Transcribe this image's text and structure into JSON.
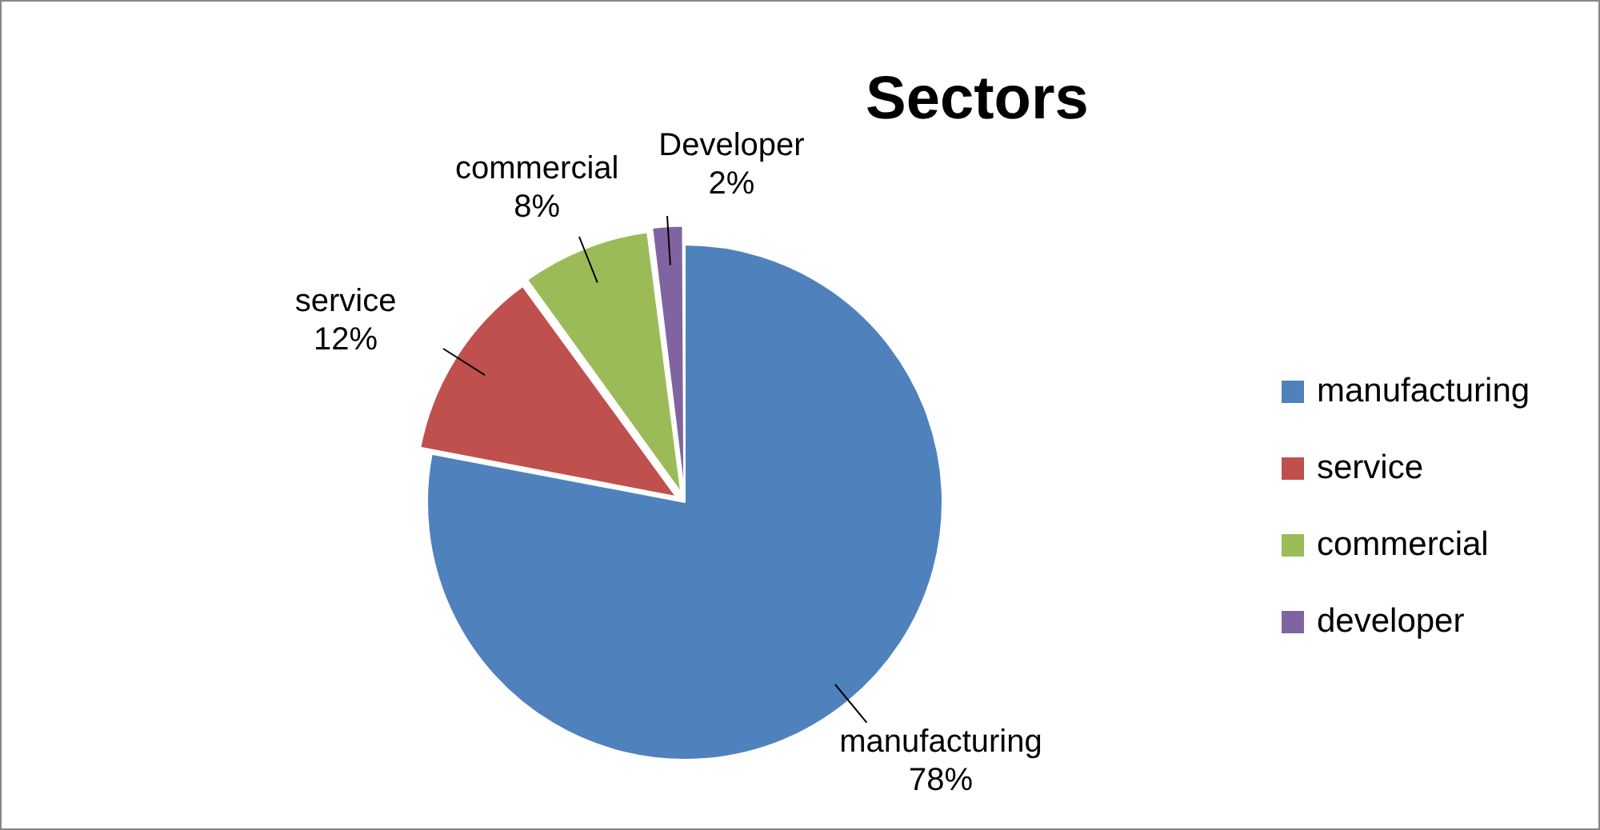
{
  "chart_data": {
    "type": "pie",
    "title": "Sectors",
    "categories": [
      "manufacturing",
      "service",
      "commercial",
      "developer"
    ],
    "values": [
      78,
      12,
      8,
      2
    ],
    "colors": [
      "#4f81bd",
      "#c0504d",
      "#9bbb59",
      "#8064a2"
    ],
    "value_labels": [
      "manufacturing\n78%",
      "service\n12%",
      "commercial\n8%",
      "Developer\n2%"
    ],
    "legend": "right"
  }
}
